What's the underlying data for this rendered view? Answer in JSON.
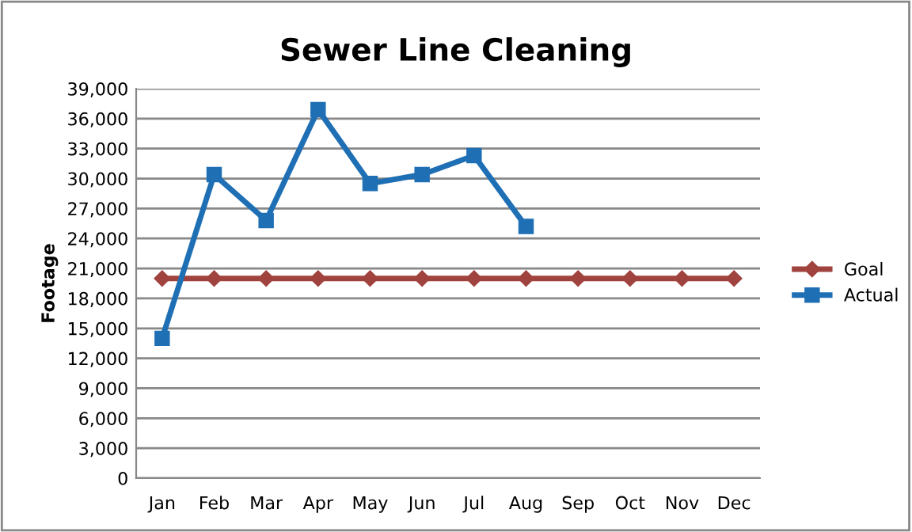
{
  "chart_data": {
    "type": "line",
    "title": "Sewer Line Cleaning",
    "ylabel": "Footage",
    "categories": [
      "Jan",
      "Feb",
      "Mar",
      "Apr",
      "May",
      "Jun",
      "Jul",
      "Aug",
      "Sep",
      "Oct",
      "Nov",
      "Dec"
    ],
    "series": [
      {
        "name": "Goal",
        "color": "#a0433f",
        "marker": "diamond",
        "values": [
          20000,
          20000,
          20000,
          20000,
          20000,
          20000,
          20000,
          20000,
          20000,
          20000,
          20000,
          20000
        ]
      },
      {
        "name": "Actual",
        "color": "#1f6fb5",
        "marker": "square",
        "values": [
          14000,
          30400,
          25800,
          36900,
          29500,
          30400,
          32300,
          25200,
          null,
          null,
          null,
          null
        ]
      }
    ],
    "ylim": [
      0,
      39000
    ],
    "yticks": [
      {
        "value": 0,
        "label": "0"
      },
      {
        "value": 3000,
        "label": "3,000"
      },
      {
        "value": 6000,
        "label": "6,000"
      },
      {
        "value": 9000,
        "label": "9,000"
      },
      {
        "value": 12000,
        "label": "12,000"
      },
      {
        "value": 15000,
        "label": "15,000"
      },
      {
        "value": 18000,
        "label": "18,000"
      },
      {
        "value": 21000,
        "label": "21,000"
      },
      {
        "value": 24000,
        "label": "24,000"
      },
      {
        "value": 27000,
        "label": "27,000"
      },
      {
        "value": 30000,
        "label": "30,000"
      },
      {
        "value": 33000,
        "label": "33,000"
      },
      {
        "value": 36000,
        "label": "36,000"
      },
      {
        "value": 39000,
        "label": "39,000"
      }
    ],
    "grid": "y",
    "legend": "right",
    "line_style": "solid"
  }
}
